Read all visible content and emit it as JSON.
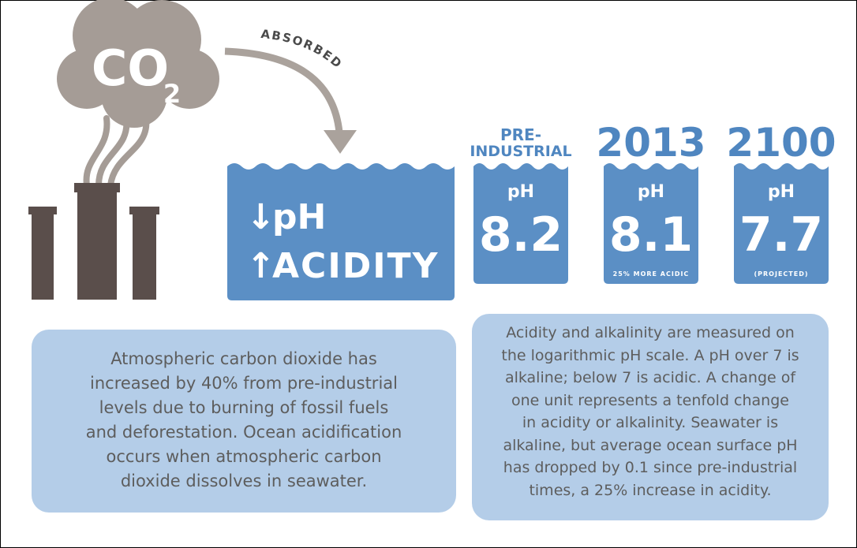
{
  "emissions": {
    "co2": "CO",
    "co2_subscript": "2",
    "arrow_label": "ABSORBED"
  },
  "ocean": {
    "ph_label": "pH",
    "acidity_label": "ACIDITY"
  },
  "panels": [
    {
      "header": [
        "PRE-",
        "INDUSTRIAL"
      ],
      "ph_label": "pH",
      "value": "8.2"
    },
    {
      "header": [
        "2013"
      ],
      "ph_label": "pH",
      "value": "8.1",
      "note": "25% MORE ACIDIC"
    },
    {
      "header": [
        "2100"
      ],
      "ph_label": "pH",
      "value": "7.7",
      "note": "(PROJECTED)"
    }
  ],
  "left_text": [
    "Atmospheric carbon dioxide has",
    "increased by 40% from pre-industrial",
    "levels due to burning of fossil fuels",
    "and deforestation. Ocean acidification",
    "occurs when atmospheric carbon",
    "dioxide dissolves in seawater."
  ],
  "right_text": [
    "Acidity and alkalinity are measured on",
    "the logarithmic pH scale. A pH over 7 is",
    "alkaline; below 7 is acidic. A change of",
    "one unit represents a tenfold change",
    "in acidity or alkalinity. Seawater is",
    "alkaline, but average ocean surface pH",
    "has dropped by 0.1 since pre-industrial",
    "times, a 25% increase in acidity."
  ]
}
